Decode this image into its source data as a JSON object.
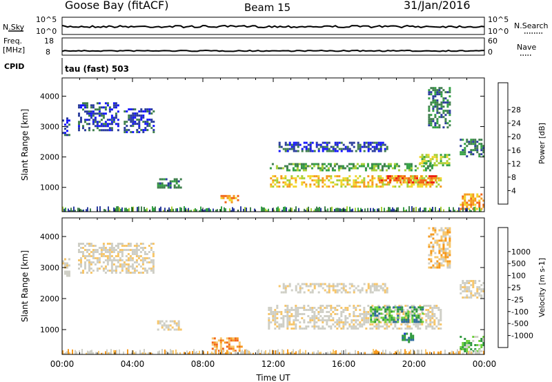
{
  "header": {
    "station": "Goose Bay (fitACF)",
    "beam": "Beam 15",
    "date": "31/Jan/2016"
  },
  "strips": {
    "nsky": {
      "left_label": "N.Sky",
      "right_label": "N.Search",
      "left_ticks": [
        "10^5",
        "10^0"
      ],
      "right_ticks": [
        "10^5",
        "10^0"
      ]
    },
    "freq": {
      "left_label_1": "Freq.",
      "left_label_2": "[MHz]",
      "right_label": "Nave",
      "left_ticks": [
        "18",
        "8"
      ],
      "right_ticks": [
        "60",
        "0"
      ]
    },
    "cpid": {
      "label": "CPID",
      "text": "tau (fast) 503"
    }
  },
  "time_axis": {
    "label": "Time UT",
    "ticks": [
      "00:00",
      "04:00",
      "08:00",
      "12:00",
      "16:00",
      "20:00",
      "00:00"
    ]
  },
  "colors": {
    "power": [
      "#1414ff",
      "#2a3c9c",
      "#3f7f4c",
      "#33a144",
      "#a8cf38",
      "#f2d52a",
      "#f69a1e",
      "#f2661a",
      "#ee2214"
    ],
    "velocity": [
      "#ee2214",
      "#f2661a",
      "#f69a1e",
      "#f7c66a",
      "#cfcfc6",
      "#cfcfc6",
      "#6cd13a",
      "#2f9a3e",
      "#2a6a9a",
      "#1a3ccf"
    ]
  },
  "chart_data": [
    {
      "type": "heatmap",
      "name": "power",
      "ylabel": "Slant Range [km]",
      "yticks": [
        1000,
        2000,
        3000,
        4000
      ],
      "ylim": [
        200,
        4600
      ],
      "xlim": [
        0,
        24
      ],
      "colorbar": {
        "label": "Power [dB]",
        "ticks": [
          "4",
          "8",
          "12",
          "16",
          "20",
          "24",
          "28"
        ],
        "range": [
          0,
          32
        ]
      },
      "regions": [
        {
          "x": [
            0.0,
            0.4
          ],
          "y": [
            2700,
            3300
          ],
          "level": 1
        },
        {
          "x": [
            0.9,
            3.2
          ],
          "y": [
            2900,
            3800
          ],
          "level": 1
        },
        {
          "x": [
            3.5,
            5.2
          ],
          "y": [
            2800,
            3600
          ],
          "level": 1
        },
        {
          "x": [
            5.4,
            6.8
          ],
          "y": [
            1000,
            1300
          ],
          "level": 2
        },
        {
          "x": [
            9.0,
            10.0
          ],
          "y": [
            500,
            750
          ],
          "level": 6
        },
        {
          "x": [
            11.7,
            21.5
          ],
          "y": [
            1050,
            1400
          ],
          "level": 5
        },
        {
          "x": [
            11.8,
            21.0
          ],
          "y": [
            1550,
            1800
          ],
          "level": 3
        },
        {
          "x": [
            12.3,
            18.5
          ],
          "y": [
            2200,
            2500
          ],
          "level": 1
        },
        {
          "x": [
            18.0,
            21.2
          ],
          "y": [
            1150,
            1400
          ],
          "level": 7
        },
        {
          "x": [
            20.3,
            22.0
          ],
          "y": [
            1700,
            2100
          ],
          "level": 4
        },
        {
          "x": [
            20.8,
            22.0
          ],
          "y": [
            3000,
            4300
          ],
          "level": 2
        },
        {
          "x": [
            22.6,
            24.0
          ],
          "y": [
            300,
            800
          ],
          "level": 6
        },
        {
          "x": [
            22.6,
            24.0
          ],
          "y": [
            2000,
            2600
          ],
          "level": 2
        }
      ]
    },
    {
      "type": "heatmap",
      "name": "velocity",
      "ylabel": "Slant Range [km]",
      "yticks": [
        1000,
        2000,
        3000,
        4000
      ],
      "ylim": [
        200,
        4600
      ],
      "xlim": [
        0,
        24
      ],
      "colorbar": {
        "label": "Velocity [m s-1]",
        "ticks": [
          "-1000",
          "-500",
          "-100",
          "-25",
          "25",
          "100",
          "500",
          "1000"
        ]
      },
      "regions": [
        {
          "x": [
            0.0,
            0.4
          ],
          "y": [
            2700,
            3300
          ],
          "level": 4
        },
        {
          "x": [
            0.9,
            5.2
          ],
          "y": [
            2800,
            3800
          ],
          "level": 4
        },
        {
          "x": [
            5.4,
            6.8
          ],
          "y": [
            1000,
            1300
          ],
          "level": 4
        },
        {
          "x": [
            8.5,
            10.2
          ],
          "y": [
            300,
            750
          ],
          "level": 2
        },
        {
          "x": [
            11.7,
            21.5
          ],
          "y": [
            1050,
            1800
          ],
          "level": 4
        },
        {
          "x": [
            12.3,
            18.5
          ],
          "y": [
            2200,
            2500
          ],
          "level": 4
        },
        {
          "x": [
            17.5,
            20.5
          ],
          "y": [
            1250,
            1750
          ],
          "level": 7
        },
        {
          "x": [
            19.3,
            19.9
          ],
          "y": [
            600,
            900
          ],
          "level": 8
        },
        {
          "x": [
            20.8,
            22.0
          ],
          "y": [
            3000,
            4300
          ],
          "level": 3
        },
        {
          "x": [
            22.6,
            24.0
          ],
          "y": [
            300,
            800
          ],
          "level": 6
        },
        {
          "x": [
            22.6,
            24.0
          ],
          "y": [
            2000,
            2600
          ],
          "level": 4
        }
      ]
    }
  ]
}
